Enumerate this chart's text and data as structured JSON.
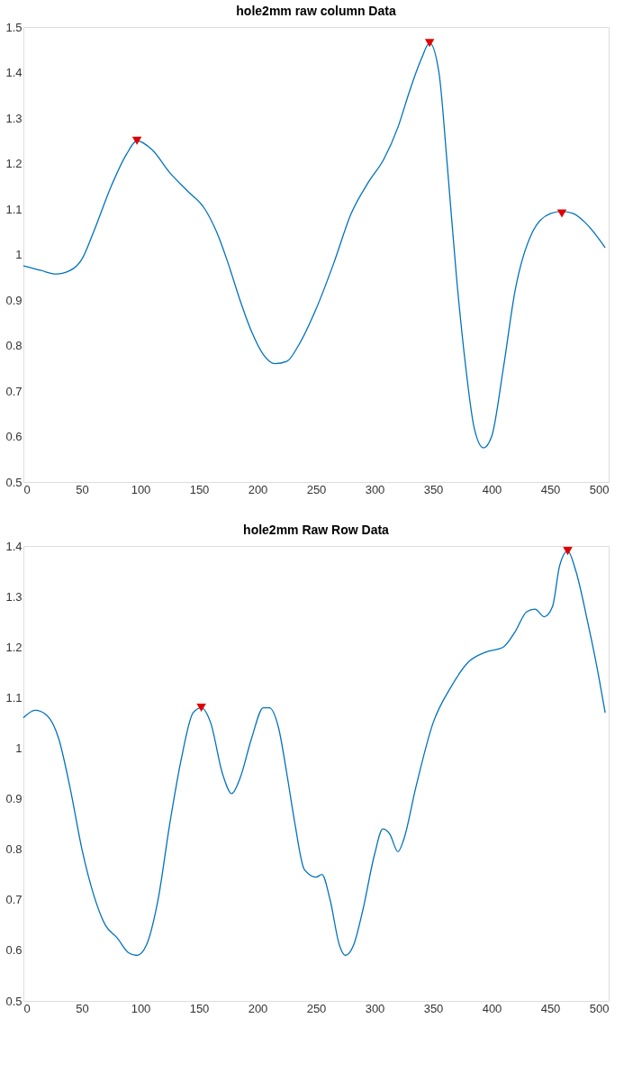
{
  "chart_data": [
    {
      "type": "line",
      "title": "hole2mm raw column Data",
      "xlim": [
        0,
        500
      ],
      "ylim": [
        0.5,
        1.5
      ],
      "xticks": [
        0,
        50,
        100,
        150,
        200,
        250,
        300,
        350,
        400,
        450,
        500
      ],
      "yticks": [
        0.5,
        0.6,
        0.7,
        0.8,
        0.9,
        1,
        1.1,
        1.2,
        1.3,
        1.4,
        1.5
      ],
      "series": [
        {
          "type": "line",
          "color": "#0072bd",
          "marker": "none",
          "x": [
            0,
            15,
            28,
            40,
            50,
            60,
            75,
            88,
            97,
            110,
            125,
            140,
            155,
            165,
            175,
            185,
            195,
            205,
            215,
            225,
            235,
            250,
            265,
            280,
            295,
            308,
            320,
            330,
            340,
            347,
            355,
            362,
            370,
            378,
            385,
            393,
            400,
            410,
            420,
            435,
            450,
            460,
            470,
            480,
            490,
            497
          ],
          "values": [
            0.975,
            0.965,
            0.957,
            0.965,
            0.99,
            1.05,
            1.15,
            1.22,
            1.25,
            1.23,
            1.18,
            1.14,
            1.1,
            1.05,
            0.98,
            0.9,
            0.83,
            0.78,
            0.76,
            0.765,
            0.8,
            0.88,
            0.98,
            1.09,
            1.16,
            1.21,
            1.28,
            1.36,
            1.43,
            1.465,
            1.4,
            1.2,
            0.95,
            0.75,
            0.62,
            0.575,
            0.6,
            0.75,
            0.92,
            1.05,
            1.09,
            1.095,
            1.09,
            1.07,
            1.04,
            1.015
          ]
        },
        {
          "type": "scatter",
          "color": "#e00000",
          "marker": "triangle",
          "x": [
            97,
            347,
            460
          ],
          "values": [
            1.25,
            1.465,
            1.09
          ]
        }
      ]
    },
    {
      "type": "line",
      "title": "hole2mm Raw Row Data",
      "xlim": [
        0,
        500
      ],
      "ylim": [
        0.5,
        1.4
      ],
      "xticks": [
        0,
        50,
        100,
        150,
        200,
        250,
        300,
        350,
        400,
        450,
        500
      ],
      "yticks": [
        0.5,
        0.6,
        0.7,
        0.8,
        0.9,
        1,
        1.1,
        1.2,
        1.3,
        1.4
      ],
      "series": [
        {
          "type": "line",
          "color": "#0072bd",
          "marker": "none",
          "x": [
            0,
            10,
            20,
            30,
            40,
            50,
            60,
            70,
            80,
            90,
            97,
            105,
            115,
            125,
            135,
            145,
            152,
            160,
            170,
            178,
            185,
            195,
            205,
            210,
            218,
            225,
            232,
            240,
            250,
            255,
            262,
            270,
            275,
            282,
            290,
            300,
            307,
            313,
            320,
            325,
            335,
            350,
            365,
            380,
            395,
            410,
            420,
            430,
            437,
            445,
            452,
            458,
            465,
            472,
            482,
            490,
            497
          ],
          "values": [
            1.06,
            1.075,
            1.065,
            1.02,
            0.92,
            0.8,
            0.71,
            0.65,
            0.625,
            0.595,
            0.59,
            0.61,
            0.7,
            0.85,
            0.98,
            1.07,
            1.08,
            1.05,
            0.95,
            0.91,
            0.94,
            1.02,
            1.08,
            1.08,
            1.04,
            0.95,
            0.85,
            0.76,
            0.745,
            0.75,
            0.7,
            0.61,
            0.59,
            0.61,
            0.68,
            0.79,
            0.84,
            0.83,
            0.795,
            0.82,
            0.92,
            1.05,
            1.12,
            1.17,
            1.19,
            1.2,
            1.23,
            1.27,
            1.275,
            1.26,
            1.28,
            1.36,
            1.39,
            1.35,
            1.25,
            1.16,
            1.07
          ]
        },
        {
          "type": "scatter",
          "color": "#e00000",
          "marker": "triangle",
          "x": [
            152,
            465
          ],
          "values": [
            1.08,
            1.39
          ]
        }
      ]
    }
  ]
}
